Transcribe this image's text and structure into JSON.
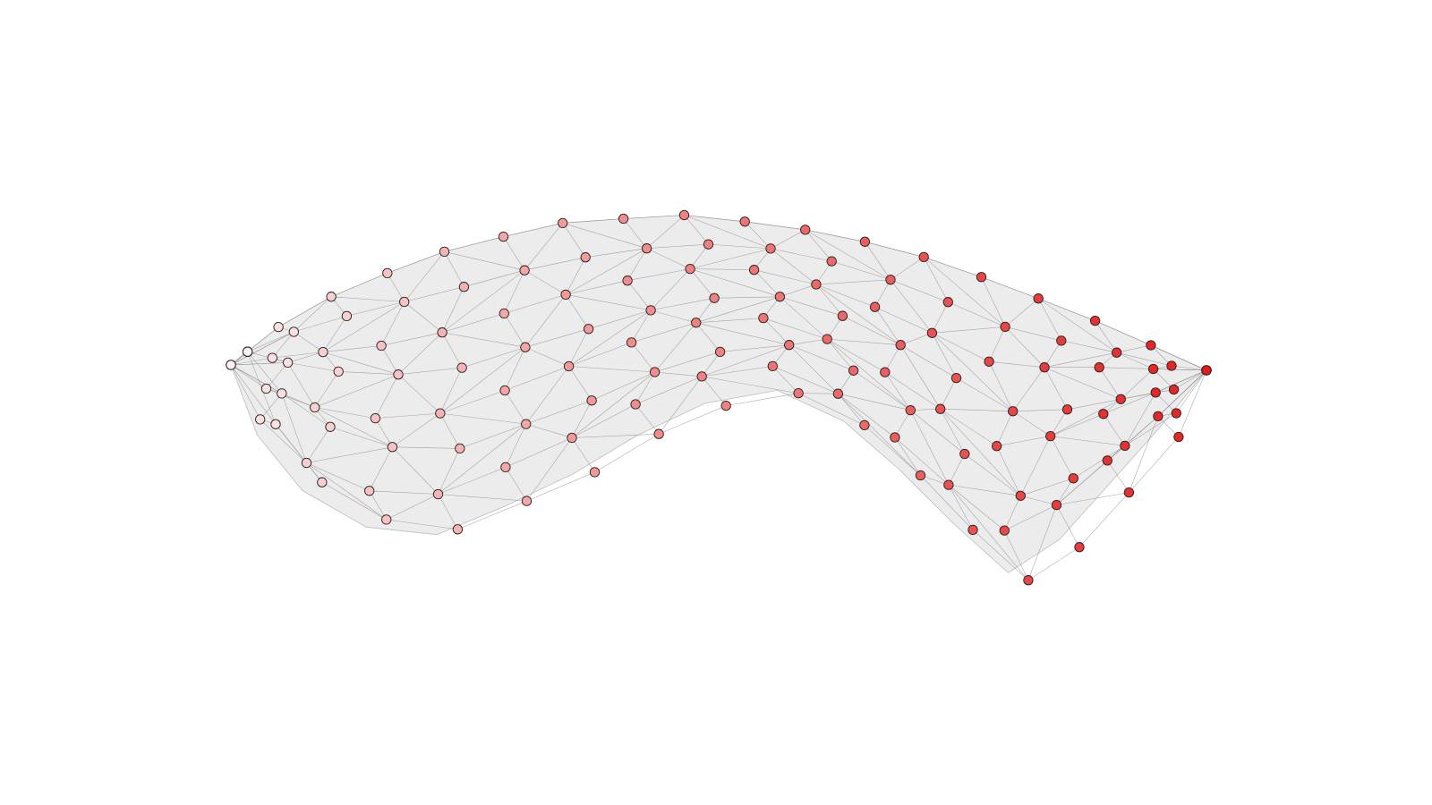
{
  "figure": {
    "kind": "3D triangulated surface mesh (bent sheet) with scatter-colored vertices",
    "background_color": "#ffffff",
    "surface_fill": "#ececec",
    "edge_color": "#888888",
    "marker_edge_color": "#222222",
    "colormap": {
      "name": "white-to-red",
      "low": "#fff2f2",
      "high": "#e51a1a"
    },
    "mesh": {
      "rows": 8,
      "columns": 18,
      "vertex_count": 144
    }
  }
}
